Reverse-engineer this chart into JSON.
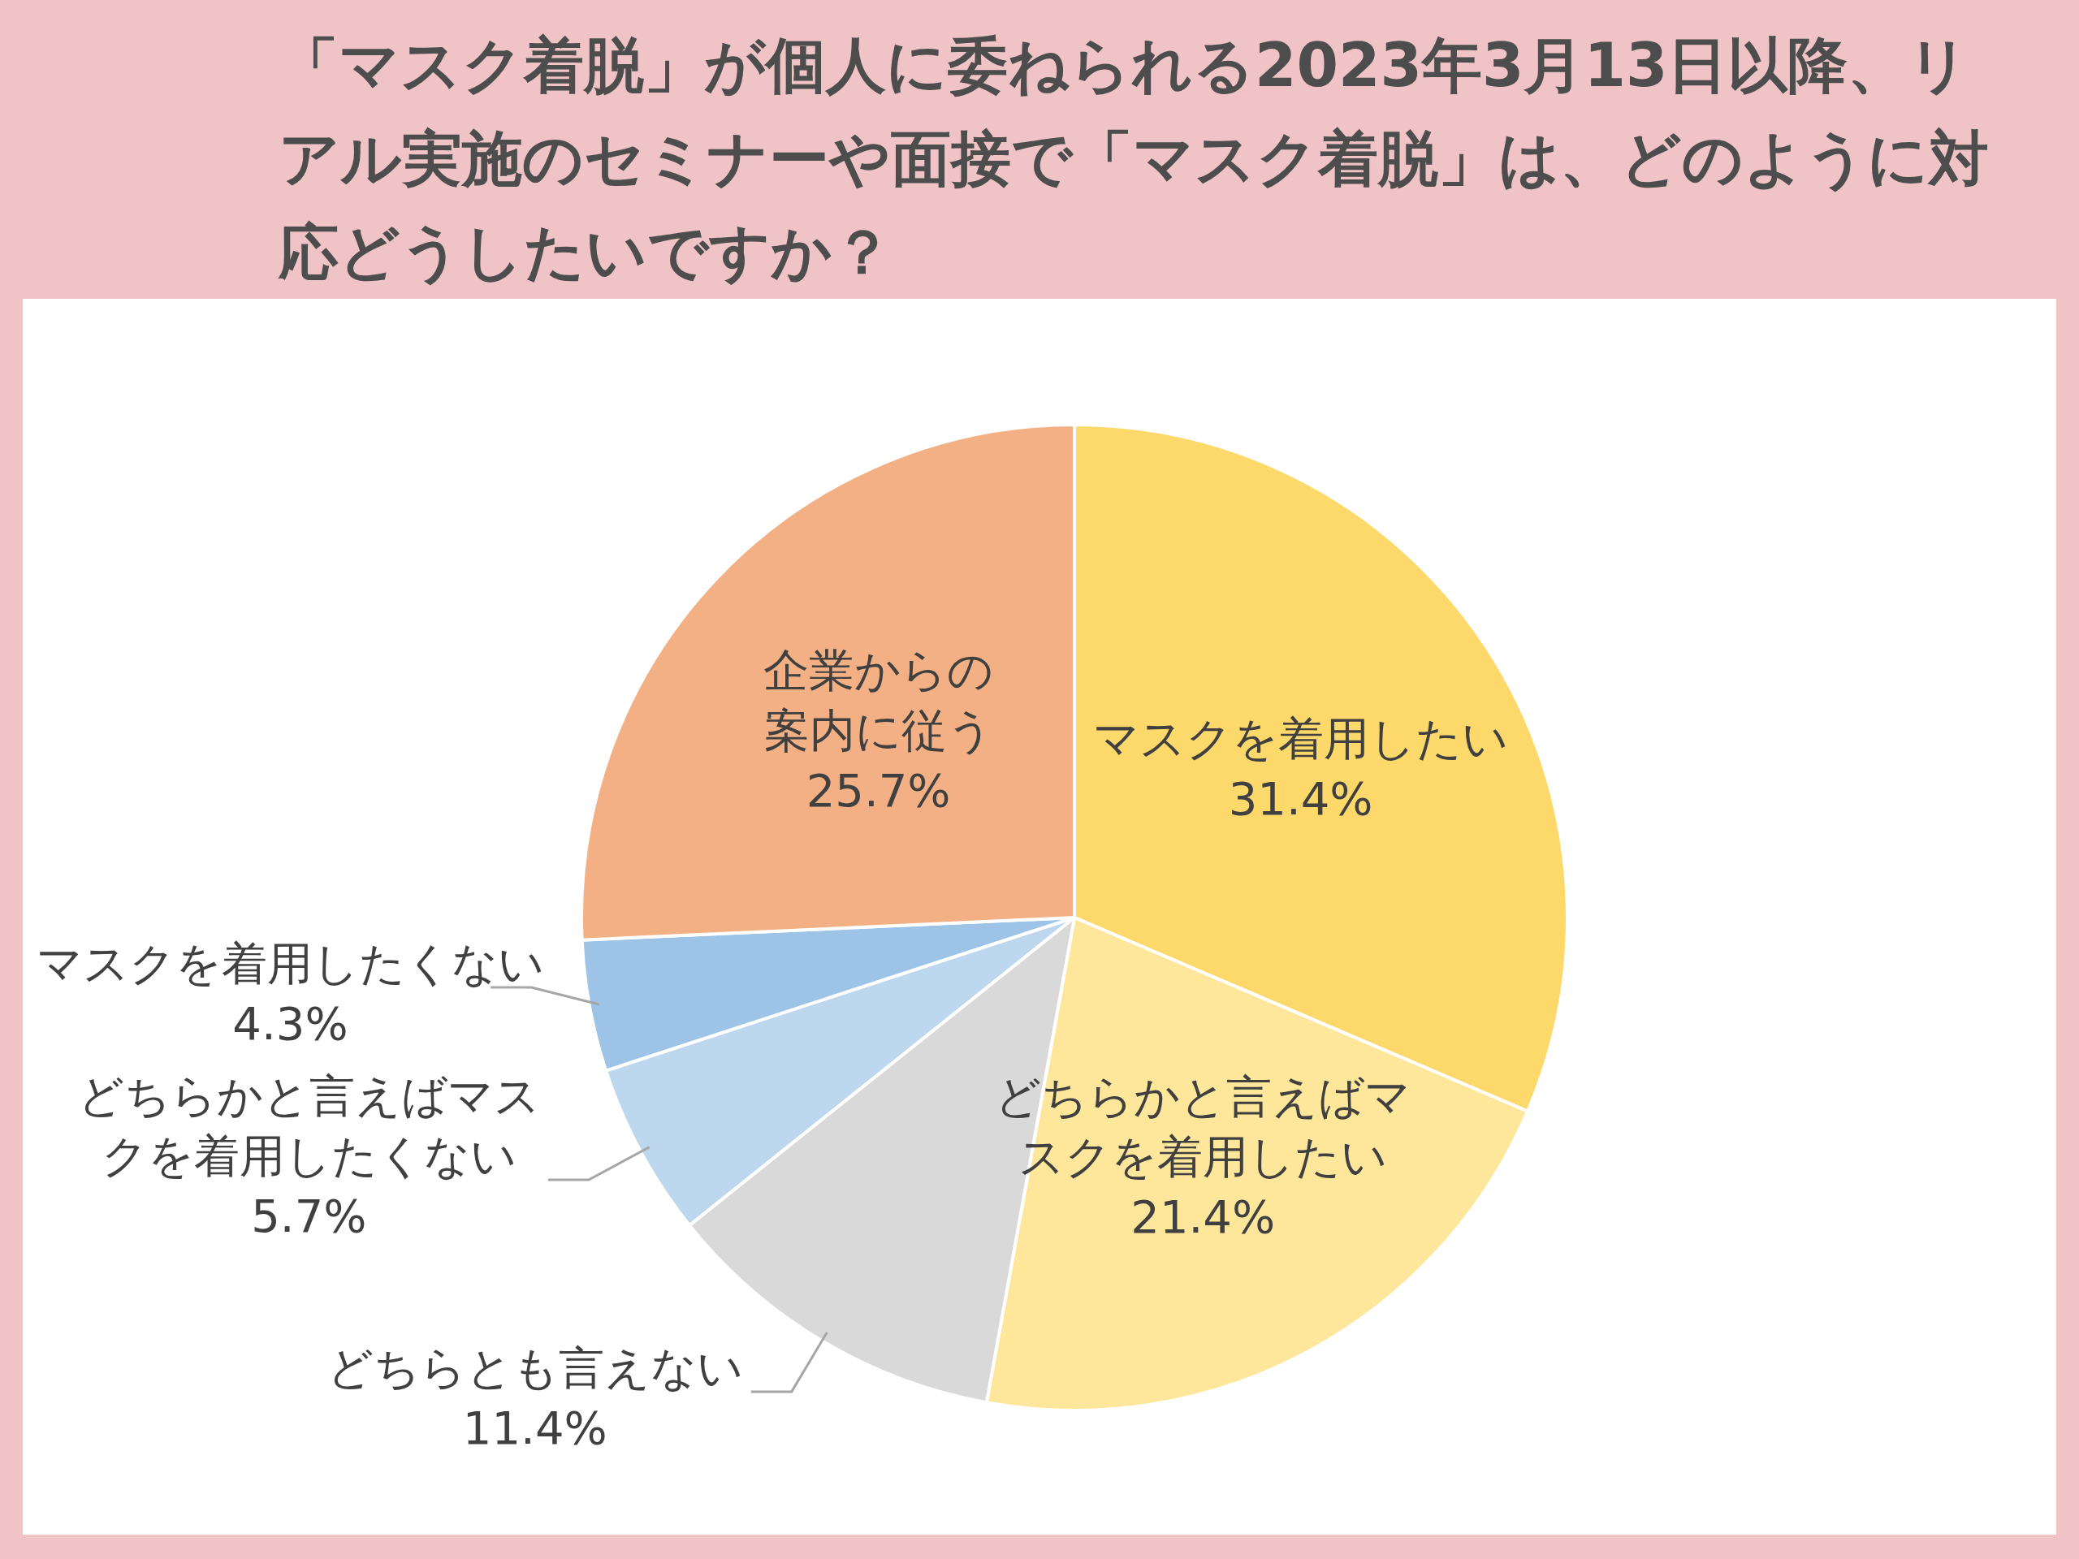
{
  "chart_data": {
    "type": "pie",
    "title": "「マスク着脱」が個人に委ねられる2023年3月13日以降、リアル実施のセミナーや面接で「マスク着脱」は、どのように対応どうしたいですか？",
    "categories": [
      "マスクを着用したい",
      "どちらかと言えばマスクを着用したい",
      "どちらとも言えない",
      "どちらかと言えばマスクを着用したくない",
      "マスクを着用したくない",
      "企業からの案内に従う"
    ],
    "values": [
      31.4,
      21.4,
      11.4,
      5.7,
      4.3,
      25.7
    ],
    "colors": [
      "#fdd96b",
      "#fee69b",
      "#d9d9d9",
      "#bdd7ee",
      "#9dc3e6",
      "#f3b084"
    ],
    "value_labels": [
      "31.4%",
      "21.4%",
      "11.4%",
      "5.7%",
      "4.3%",
      "25.7%"
    ]
  }
}
